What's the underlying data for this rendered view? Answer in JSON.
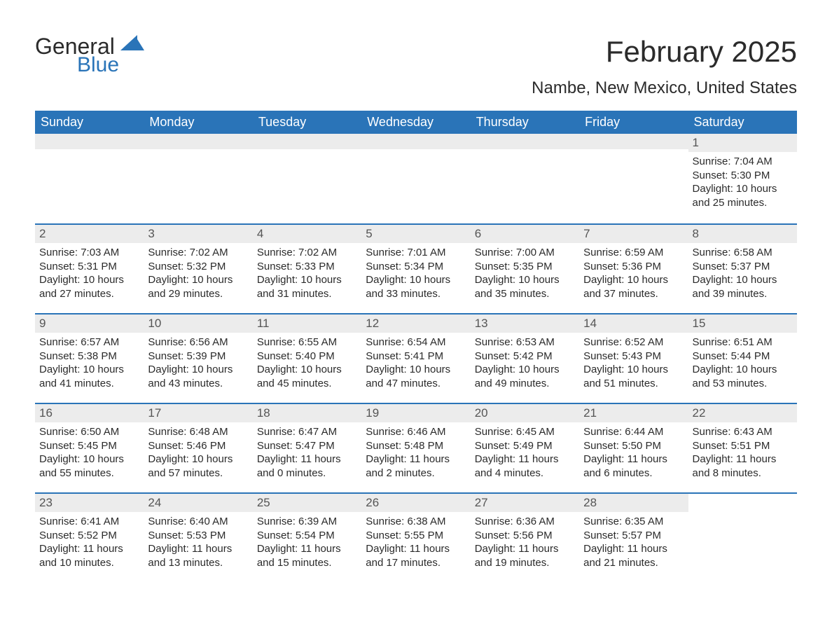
{
  "colors": {
    "header_bg": "#2a74b8",
    "header_text": "#ffffff",
    "row_divider": "#2a74b8",
    "daynum_bg": "#ececec",
    "body_text": "#2b2b2b",
    "page_bg": "#ffffff",
    "logo_blue": "#2a74b8"
  },
  "typography": {
    "title_fontsize": 42,
    "location_fontsize": 24,
    "dow_fontsize": 18,
    "cell_fontsize": 15,
    "font_family": "Arial"
  },
  "logo": {
    "line1": "General",
    "line2": "Blue"
  },
  "title": "February 2025",
  "location": "Nambe, New Mexico, United States",
  "days_of_week": [
    "Sunday",
    "Monday",
    "Tuesday",
    "Wednesday",
    "Thursday",
    "Friday",
    "Saturday"
  ],
  "labels": {
    "sunrise": "Sunrise: ",
    "sunset": "Sunset: ",
    "daylight_prefix": "Daylight: ",
    "daylight_mid": " hours and ",
    "daylight_suffix": " minutes."
  },
  "weeks": [
    [
      null,
      null,
      null,
      null,
      null,
      null,
      {
        "n": "1",
        "sunrise": "7:04 AM",
        "sunset": "5:30 PM",
        "dh": "10",
        "dm": "25"
      }
    ],
    [
      {
        "n": "2",
        "sunrise": "7:03 AM",
        "sunset": "5:31 PM",
        "dh": "10",
        "dm": "27"
      },
      {
        "n": "3",
        "sunrise": "7:02 AM",
        "sunset": "5:32 PM",
        "dh": "10",
        "dm": "29"
      },
      {
        "n": "4",
        "sunrise": "7:02 AM",
        "sunset": "5:33 PM",
        "dh": "10",
        "dm": "31"
      },
      {
        "n": "5",
        "sunrise": "7:01 AM",
        "sunset": "5:34 PM",
        "dh": "10",
        "dm": "33"
      },
      {
        "n": "6",
        "sunrise": "7:00 AM",
        "sunset": "5:35 PM",
        "dh": "10",
        "dm": "35"
      },
      {
        "n": "7",
        "sunrise": "6:59 AM",
        "sunset": "5:36 PM",
        "dh": "10",
        "dm": "37"
      },
      {
        "n": "8",
        "sunrise": "6:58 AM",
        "sunset": "5:37 PM",
        "dh": "10",
        "dm": "39"
      }
    ],
    [
      {
        "n": "9",
        "sunrise": "6:57 AM",
        "sunset": "5:38 PM",
        "dh": "10",
        "dm": "41"
      },
      {
        "n": "10",
        "sunrise": "6:56 AM",
        "sunset": "5:39 PM",
        "dh": "10",
        "dm": "43"
      },
      {
        "n": "11",
        "sunrise": "6:55 AM",
        "sunset": "5:40 PM",
        "dh": "10",
        "dm": "45"
      },
      {
        "n": "12",
        "sunrise": "6:54 AM",
        "sunset": "5:41 PM",
        "dh": "10",
        "dm": "47"
      },
      {
        "n": "13",
        "sunrise": "6:53 AM",
        "sunset": "5:42 PM",
        "dh": "10",
        "dm": "49"
      },
      {
        "n": "14",
        "sunrise": "6:52 AM",
        "sunset": "5:43 PM",
        "dh": "10",
        "dm": "51"
      },
      {
        "n": "15",
        "sunrise": "6:51 AM",
        "sunset": "5:44 PM",
        "dh": "10",
        "dm": "53"
      }
    ],
    [
      {
        "n": "16",
        "sunrise": "6:50 AM",
        "sunset": "5:45 PM",
        "dh": "10",
        "dm": "55"
      },
      {
        "n": "17",
        "sunrise": "6:48 AM",
        "sunset": "5:46 PM",
        "dh": "10",
        "dm": "57"
      },
      {
        "n": "18",
        "sunrise": "6:47 AM",
        "sunset": "5:47 PM",
        "dh": "11",
        "dm": "0"
      },
      {
        "n": "19",
        "sunrise": "6:46 AM",
        "sunset": "5:48 PM",
        "dh": "11",
        "dm": "2"
      },
      {
        "n": "20",
        "sunrise": "6:45 AM",
        "sunset": "5:49 PM",
        "dh": "11",
        "dm": "4"
      },
      {
        "n": "21",
        "sunrise": "6:44 AM",
        "sunset": "5:50 PM",
        "dh": "11",
        "dm": "6"
      },
      {
        "n": "22",
        "sunrise": "6:43 AM",
        "sunset": "5:51 PM",
        "dh": "11",
        "dm": "8"
      }
    ],
    [
      {
        "n": "23",
        "sunrise": "6:41 AM",
        "sunset": "5:52 PM",
        "dh": "11",
        "dm": "10"
      },
      {
        "n": "24",
        "sunrise": "6:40 AM",
        "sunset": "5:53 PM",
        "dh": "11",
        "dm": "13"
      },
      {
        "n": "25",
        "sunrise": "6:39 AM",
        "sunset": "5:54 PM",
        "dh": "11",
        "dm": "15"
      },
      {
        "n": "26",
        "sunrise": "6:38 AM",
        "sunset": "5:55 PM",
        "dh": "11",
        "dm": "17"
      },
      {
        "n": "27",
        "sunrise": "6:36 AM",
        "sunset": "5:56 PM",
        "dh": "11",
        "dm": "19"
      },
      {
        "n": "28",
        "sunrise": "6:35 AM",
        "sunset": "5:57 PM",
        "dh": "11",
        "dm": "21"
      },
      null
    ]
  ]
}
